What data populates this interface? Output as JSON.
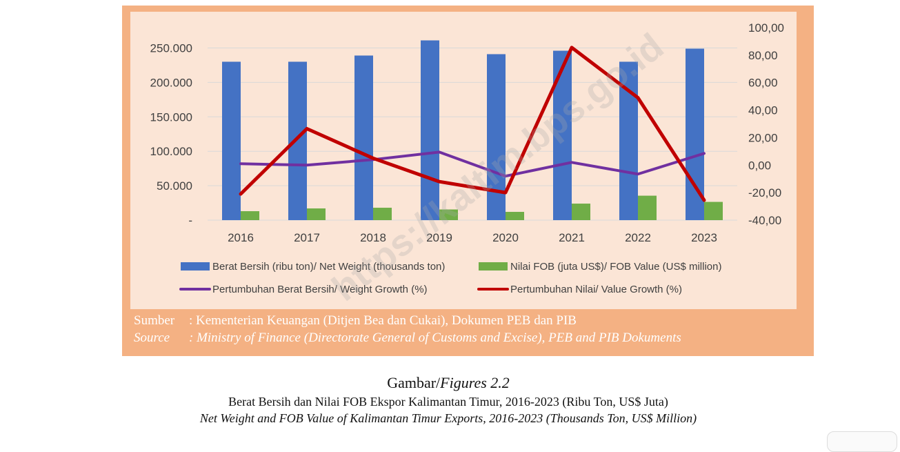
{
  "chart_data": {
    "type": "bar",
    "categories": [
      "2016",
      "2017",
      "2018",
      "2019",
      "2020",
      "2021",
      "2022",
      "2023"
    ],
    "series": [
      {
        "name": "Berat Bersih (ribu ton)/  Net Weight (thousands ton)",
        "type": "bar",
        "axis": "left",
        "color": "#4472c4",
        "values": [
          230000,
          230000,
          239000,
          261000,
          241000,
          246000,
          230000,
          249000
        ]
      },
      {
        "name": "Nilai FOB (juta US$)/ FOB Value (US$ million)",
        "type": "bar",
        "axis": "left",
        "color": "#70ad47",
        "values": [
          13000,
          17000,
          18000,
          15500,
          12000,
          24000,
          35500,
          26500
        ]
      },
      {
        "name": "Pertumbuhan Berat Bersih/ Weight Growth (%)",
        "type": "line",
        "axis": "right",
        "color": "#7030a0",
        "values": [
          1.0,
          0.0,
          4.0,
          9.5,
          -8.0,
          2.0,
          -6.5,
          8.5
        ]
      },
      {
        "name": "Pertumbuhan Nilai/ Value Growth (%)",
        "type": "line",
        "axis": "right",
        "color": "#c00000",
        "values": [
          -21.0,
          26.5,
          5.0,
          -12.0,
          -20.0,
          85.5,
          49.0,
          -25.5
        ]
      }
    ],
    "ylim_left": [
      0,
      280000
    ],
    "yticks_left": [
      "-",
      "50.000",
      "100.000",
      "150.000",
      "200.000",
      "250.000"
    ],
    "ylim_right": [
      -40,
      100
    ],
    "yticks_right": [
      "-40,00",
      "-20,00",
      "0,00",
      "20,00",
      "40,00",
      "60,00",
      "80,00",
      "100,00"
    ],
    "grid": true,
    "legend_position": "bottom"
  },
  "source": {
    "sumber_label": "Sumber",
    "sumber_text": ": Kementerian Keuangan (Ditjen Bea dan Cukai), Dokumen PEB dan PIB",
    "source_label": "Source",
    "source_text": ": Ministry of Finance (Directorate General of Customs and Excise), PEB and PIB Dokuments"
  },
  "caption": {
    "figure_id": "Gambar/",
    "figure_id_en": "Figures 2.2",
    "title_id": "Berat Bersih dan Nilai FOB Ekspor Kalimantan Timur, 2016-2023 (Ribu Ton, US$ Juta)",
    "title_en": "Net Weight and FOB Value of Kalimantan Timur  Exports, 2016-2023 (Thousands Ton, US$ Million)"
  },
  "watermark": "https://kaltim.bps.go.id",
  "colors": {
    "frame": "#f4b183",
    "plot_bg": "#fbe5d6"
  }
}
